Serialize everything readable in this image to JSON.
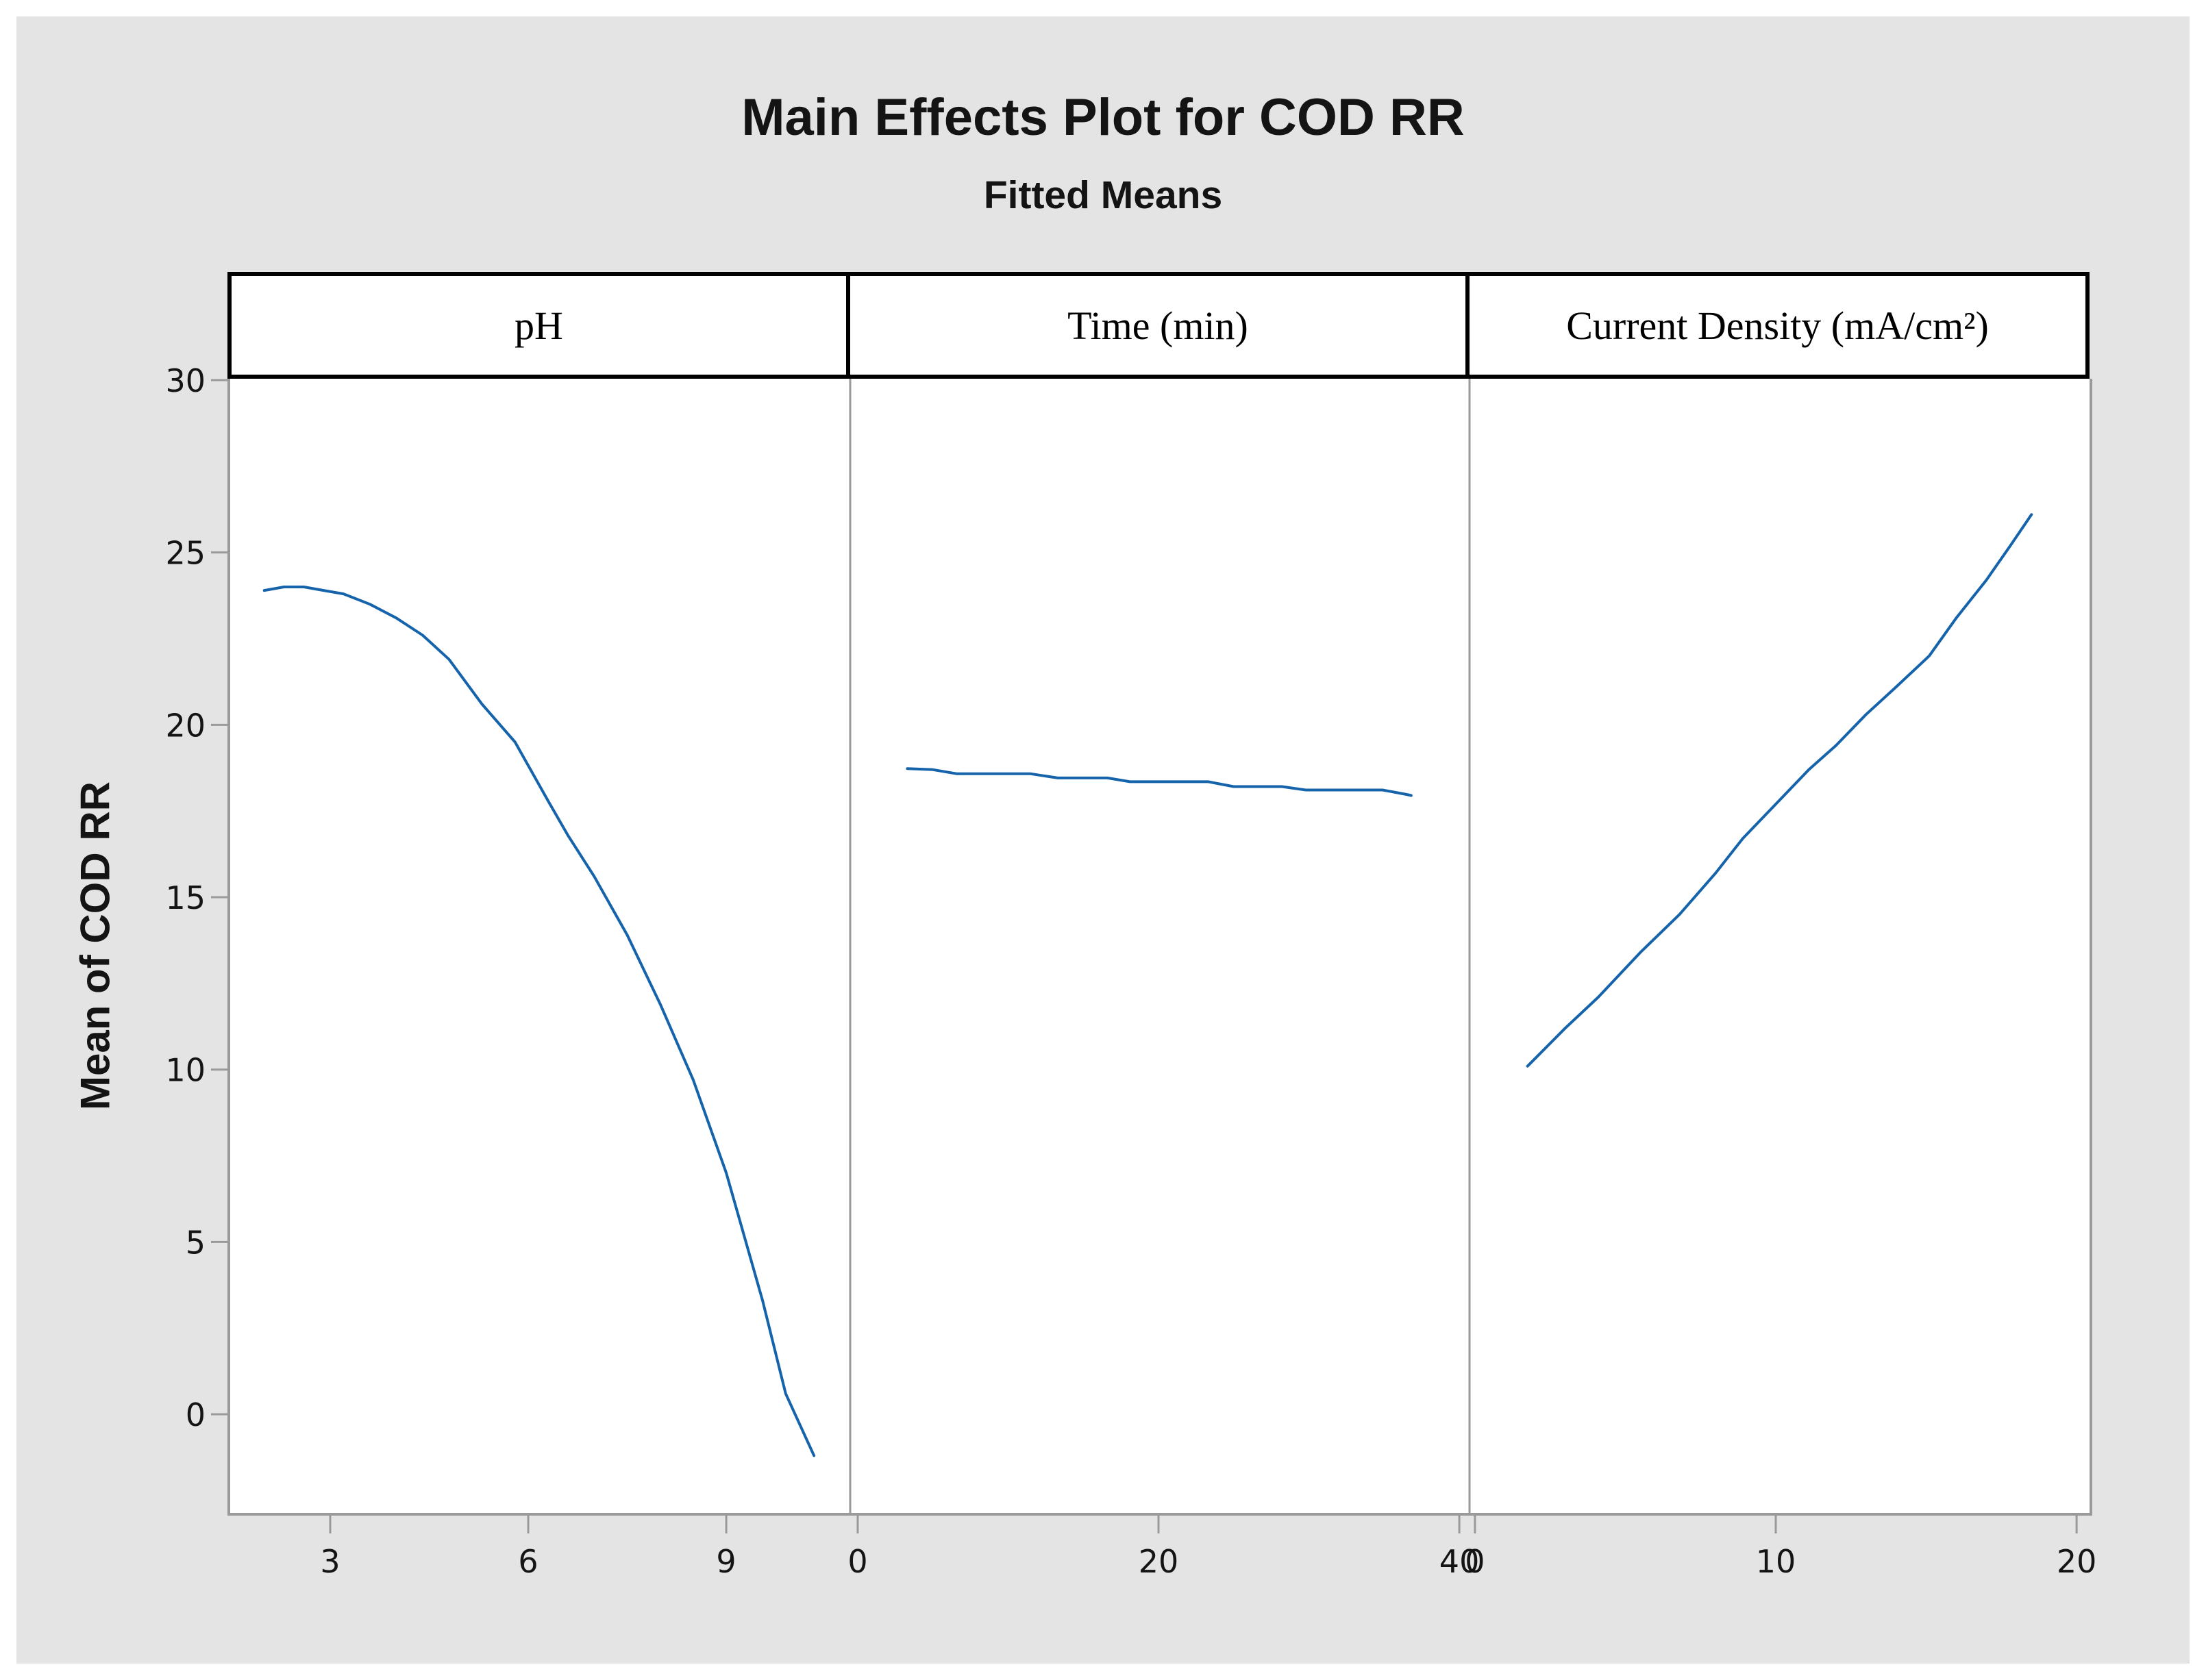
{
  "title": "Main Effects Plot for COD RR",
  "subtitle": "Fitted Means",
  "colors": {
    "line": "#1563ab",
    "canvas_bg": "#e4e4e4",
    "plot_bg": "#ffffff",
    "axis": "#9a9a9a",
    "header_border": "#000000",
    "text": "#141414"
  },
  "chart_data": {
    "type": "line",
    "title": "Main Effects Plot for COD RR",
    "subtitle": "Fitted Means",
    "ylabel": "Mean of COD RR",
    "ylim": [
      -2.86,
      30.04
    ],
    "yticks": [
      0,
      5,
      10,
      15,
      20,
      25,
      30
    ],
    "grid": false,
    "legend": "none",
    "panels": [
      {
        "label": "pH",
        "xlim": [
          1.443,
          10.878
        ],
        "xticks": [
          3,
          6,
          9
        ],
        "x": [
          2.0,
          2.3,
          2.6,
          2.9,
          3.2,
          3.6,
          4.0,
          4.4,
          4.8,
          5.3,
          5.8,
          6.3,
          6.6,
          7.0,
          7.5,
          8.0,
          8.5,
          9.0,
          9.55,
          9.9,
          10.33
        ],
        "y": [
          23.9,
          24.0,
          24.0,
          23.9,
          23.8,
          23.5,
          23.1,
          22.6,
          21.9,
          20.6,
          19.5,
          17.8,
          16.8,
          15.6,
          13.9,
          11.9,
          9.7,
          7.0,
          3.3,
          0.6,
          -1.2
        ]
      },
      {
        "label": "Time (min)",
        "xlim": [
          -0.5,
          40.68
        ],
        "xticks": [
          0,
          20,
          40
        ],
        "x": [
          3.3,
          5.0,
          6.6,
          11.5,
          13.3,
          16.6,
          18.1,
          23.3,
          25.0,
          28.2,
          29.8,
          34.9,
          36.5,
          36.8
        ],
        "y": [
          18.73,
          18.7,
          18.58,
          18.58,
          18.46,
          18.46,
          18.35,
          18.35,
          18.21,
          18.21,
          18.11,
          18.11,
          17.98,
          17.95
        ]
      },
      {
        "label": "Current Density (mA/cm²)",
        "xlim": [
          -0.18,
          20.43
        ],
        "xticks": [
          0,
          10,
          20
        ],
        "x": [
          1.75,
          3.0,
          4.1,
          5.5,
          6.8,
          8.0,
          8.9,
          10.0,
          11.1,
          12.0,
          13.0,
          14.0,
          15.1,
          16.0,
          17.0,
          17.8,
          18.5
        ],
        "y": [
          10.1,
          11.2,
          12.1,
          13.4,
          14.5,
          15.7,
          16.7,
          17.7,
          18.7,
          19.4,
          20.3,
          21.1,
          22.0,
          23.1,
          24.2,
          25.2,
          26.1
        ]
      }
    ]
  }
}
